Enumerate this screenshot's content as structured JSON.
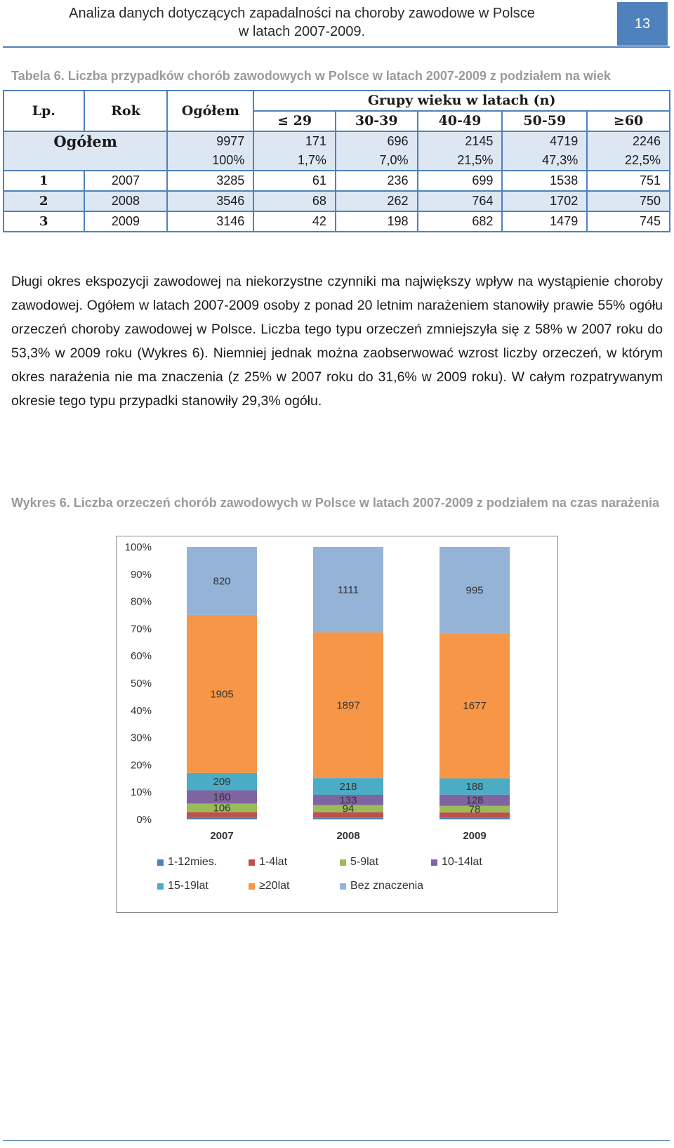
{
  "header": {
    "title_line1": "Analiza danych dotyczących zapadalności na choroby zawodowe w Polsce",
    "title_line2": "w latach 2007-2009.",
    "page_number": "13"
  },
  "table": {
    "caption": "Tabela 6. Liczba przypadków chorób zawodowych w Polsce w latach 2007-2009 z podziałem na wiek",
    "head": {
      "lp": "Lp.",
      "rok": "Rok",
      "ogolem": "Ogółem",
      "group_title": "Grupy wieku w latach (n)",
      "groups": [
        "≤ 29",
        "30-39",
        "40-49",
        "50-59",
        "≥60"
      ]
    },
    "total": {
      "label": "Ogółem",
      "ogolem_n": "9977",
      "ogolem_pct": "100%",
      "groups_n": [
        "171",
        "696",
        "2145",
        "4719",
        "2246"
      ],
      "groups_pct": [
        "1,7%",
        "7,0%",
        "21,5%",
        "47,3%",
        "22,5%"
      ]
    },
    "rows": [
      {
        "lp": "1",
        "rok": "2007",
        "ogolem": "3285",
        "values": [
          "61",
          "236",
          "699",
          "1538",
          "751"
        ]
      },
      {
        "lp": "2",
        "rok": "2008",
        "ogolem": "3546",
        "values": [
          "68",
          "262",
          "764",
          "1702",
          "750"
        ]
      },
      {
        "lp": "3",
        "rok": "2009",
        "ogolem": "3146",
        "values": [
          "42",
          "198",
          "682",
          "1479",
          "745"
        ]
      }
    ]
  },
  "body": {
    "paragraph": "Długi okres ekspozycji zawodowej na niekorzystne czynniki ma największy wpływ na wystąpienie choroby zawodowej. Ogółem w latach 2007-2009 osoby z ponad 20 letnim narażeniem stanowiły prawie 55% ogółu orzeczeń choroby zawodowej w Polsce. Liczba tego typu orzeczeń zmniejszyła się z 58% w 2007 roku do 53,3% w 2009 roku (Wykres 6). Niemniej jednak można zaobserwować wzrost liczby orzeczeń, w którym okres narażenia nie ma znaczenia (z 25% w 2007 roku do 31,6% w 2009 roku). W całym rozpatrywanym okresie tego typu przypadki stanowiły 29,3% ogółu."
  },
  "chart": {
    "caption": "Wykres 6. Liczba orzeczeń chorób zawodowych w Polsce w latach 2007-2009 z podziałem na czas narażenia"
  },
  "chart_data": {
    "type": "bar",
    "stacked": true,
    "normalized": true,
    "categories": [
      "2007",
      "2008",
      "2009"
    ],
    "ylim": [
      0,
      100
    ],
    "ytick_labels": [
      "0%",
      "10%",
      "20%",
      "30%",
      "40%",
      "50%",
      "60%",
      "70%",
      "80%",
      "90%",
      "100%"
    ],
    "legend_position": "bottom",
    "grid": false,
    "series": [
      {
        "name": "1-12mies.",
        "color": "#4f81bd",
        "values": [
          26,
          26,
          21
        ],
        "labels": [
          "",
          "",
          ""
        ]
      },
      {
        "name": "1-4lat",
        "color": "#c0504d",
        "values": [
          59,
          67,
          59
        ],
        "labels": [
          "",
          "",
          ""
        ]
      },
      {
        "name": "5-9lat",
        "color": "#9bbb59",
        "values": [
          106,
          94,
          78
        ],
        "labels": [
          "106",
          "94",
          "78"
        ]
      },
      {
        "name": "10-14lat",
        "color": "#8064a2",
        "values": [
          160,
          133,
          128
        ],
        "labels": [
          "160",
          "133",
          "128"
        ]
      },
      {
        "name": "15-19lat",
        "color": "#4bacc6",
        "values": [
          209,
          218,
          188
        ],
        "labels": [
          "209",
          "218",
          "188"
        ]
      },
      {
        "name": "≥20lat",
        "color": "#f79646",
        "values": [
          1905,
          1897,
          1677
        ],
        "labels": [
          "1905",
          "1897",
          "1677"
        ]
      },
      {
        "name": "Bez znaczenia",
        "color": "#95b3d7",
        "values": [
          820,
          1111,
          995
        ],
        "labels": [
          "820",
          "1111",
          "995"
        ]
      }
    ]
  }
}
